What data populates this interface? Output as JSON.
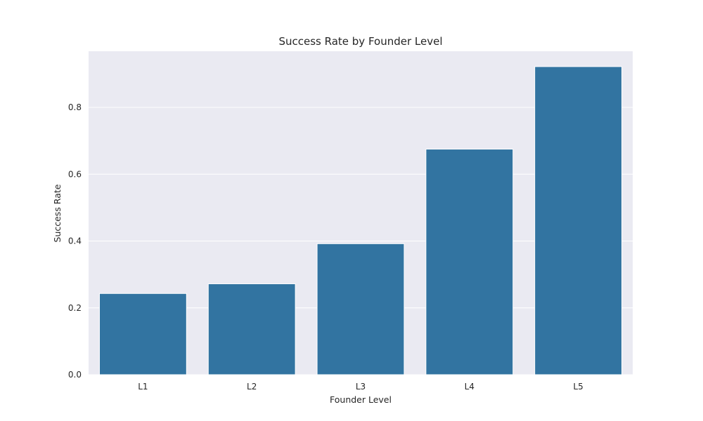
{
  "chart_data": {
    "type": "bar",
    "title": "Success Rate by Founder Level",
    "xlabel": "Founder Level",
    "ylabel": "Success Rate",
    "categories": [
      "L1",
      "L2",
      "L3",
      "L4",
      "L5"
    ],
    "values": [
      0.243,
      0.272,
      0.392,
      0.675,
      0.922
    ],
    "ylim": [
      0,
      0.968
    ],
    "yticks": [
      "0.0",
      "0.2",
      "0.4",
      "0.6",
      "0.8"
    ],
    "grid": true,
    "colors": {
      "bar": "#3274a1",
      "plot_background": "#eaeaf2",
      "grid": "#ffffff"
    }
  }
}
